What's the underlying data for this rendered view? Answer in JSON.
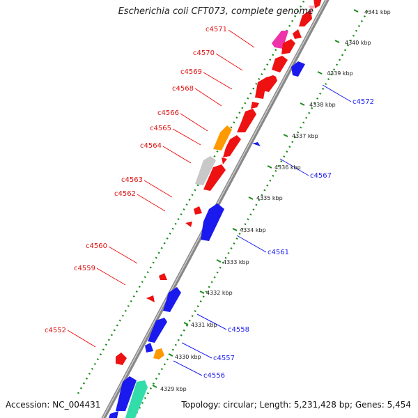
{
  "title": "Escherichia coli CFT073, complete genome",
  "accession_label": "Accession:",
  "accession": "NC_004431",
  "topology_label": "Topology:",
  "topology": "circular",
  "length_label": "Length:",
  "length": "5,231,428 bp",
  "genes_label": "Genes:",
  "genes": "5,454",
  "colors": {
    "forward": "#ee1111",
    "reverse": "#1a1aee",
    "orange": "#ff9900",
    "gray": "#c8c8c8",
    "magenta": "#ee33aa",
    "pink": "#ffaabb",
    "teal": "#33ddaa",
    "scale_green": "#1a8a1a",
    "backbone": "#888888"
  },
  "scale_ticks": [
    "4329 kbp",
    "4330 kbp",
    "4331 kbp",
    "4332 kbp",
    "4333 kbp",
    "4334 kbp",
    "4335 kbp",
    "4336 kbp",
    "4337 kbp",
    "4338 kbp",
    "4339 kbp",
    "4340 kbp",
    "4341 kbp"
  ],
  "forward_labels": [
    "c4571",
    "c4570",
    "c4569",
    "c4568",
    "c4566",
    "c4565",
    "c4564",
    "c4563",
    "c4562",
    "c4560",
    "c4559",
    "c4552"
  ],
  "reverse_labels": [
    "c4572",
    "c4567",
    "c4561",
    "c4558",
    "c4557",
    "c4556"
  ]
}
